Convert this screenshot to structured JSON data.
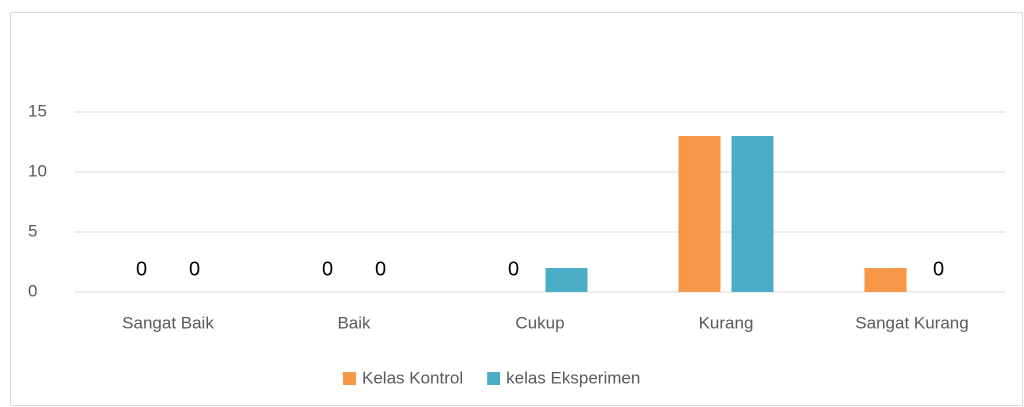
{
  "chart_data": {
    "type": "bar",
    "categories": [
      "Sangat Baik",
      "Baik",
      "Cukup",
      "Kurang",
      "Sangat Kurang"
    ],
    "series": [
      {
        "name": "Kelas Kontrol",
        "color": "#f79646",
        "values": [
          0,
          0,
          0,
          13,
          2
        ]
      },
      {
        "name": "kelas Eksperimen",
        "color": "#4bacc6",
        "values": [
          0,
          0,
          2,
          13,
          0
        ]
      }
    ],
    "ylim": [
      0,
      15
    ],
    "yticks": [
      0,
      5,
      10,
      15
    ],
    "grid": true,
    "legend": "bottom"
  }
}
